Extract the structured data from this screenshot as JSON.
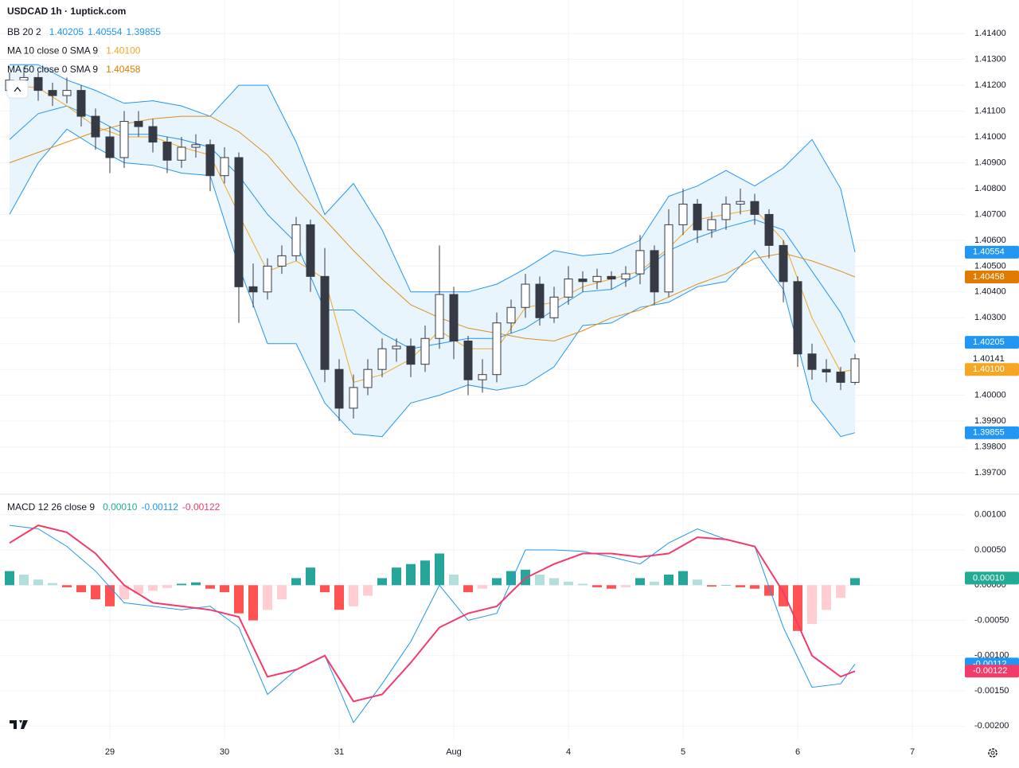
{
  "chart_data": [
    {
      "type": "candlestick",
      "title": "USDCAD 1h · 1uptick.com",
      "x": [
        -21,
        -18,
        -15,
        -12,
        -9,
        -6,
        -3,
        0,
        3,
        6,
        9,
        12,
        15,
        18,
        21,
        24,
        27,
        30,
        33,
        36,
        39,
        42,
        45,
        48,
        51,
        54,
        57,
        60,
        63,
        66,
        69,
        72,
        75,
        78,
        81,
        84,
        87,
        90,
        93,
        96,
        99,
        102,
        105,
        108,
        111,
        114,
        117,
        120,
        123,
        126,
        129,
        132,
        135,
        138,
        141,
        144,
        147,
        150,
        153,
        156
      ],
      "open": [
        1.4118,
        1.4122,
        1.4123,
        1.4118,
        1.4116,
        1.4118,
        1.4108,
        1.41,
        1.4092,
        1.4106,
        1.4104,
        1.4098,
        1.4091,
        1.4096,
        1.4097,
        1.4085,
        1.4092,
        1.4042,
        1.404,
        1.405,
        1.4054,
        1.4066,
        1.4046,
        1.401,
        1.3995,
        1.4003,
        1.401,
        1.4018,
        1.4019,
        1.4012,
        1.4022,
        1.4039,
        1.4021,
        1.4006,
        1.4008,
        1.4028,
        1.4034,
        1.4043,
        1.403,
        1.4038,
        1.4045,
        1.4044,
        1.4046,
        1.4045,
        1.4047,
        1.4056,
        1.404,
        1.4066,
        1.4074,
        1.4064,
        1.4068,
        1.4074,
        1.4075,
        1.407,
        1.4058,
        1.4044,
        1.4016,
        1.401,
        1.4009,
        1.4005
      ],
      "high": [
        1.4125,
        1.4127,
        1.4125,
        1.4121,
        1.4123,
        1.412,
        1.4111,
        1.4104,
        1.411,
        1.411,
        1.4107,
        1.41,
        1.41,
        1.4101,
        1.4099,
        1.4096,
        1.4094,
        1.4051,
        1.4053,
        1.4058,
        1.4069,
        1.4068,
        1.4057,
        1.4014,
        1.4008,
        1.4014,
        1.4022,
        1.4022,
        1.4022,
        1.4027,
        1.4058,
        1.4042,
        1.4023,
        1.4014,
        1.4032,
        1.4037,
        1.4047,
        1.4046,
        1.4042,
        1.405,
        1.4048,
        1.4049,
        1.4048,
        1.405,
        1.4062,
        1.4058,
        1.4072,
        1.408,
        1.4076,
        1.4071,
        1.4077,
        1.408,
        1.4078,
        1.4072,
        1.406,
        1.4046,
        1.402,
        1.4014,
        1.4011,
        1.4016
      ],
      "low": [
        1.4115,
        1.4118,
        1.4114,
        1.4112,
        1.4113,
        1.4104,
        1.4095,
        1.4086,
        1.4088,
        1.41,
        1.4094,
        1.4086,
        1.4088,
        1.4092,
        1.4079,
        1.4082,
        1.4028,
        1.4034,
        1.4037,
        1.4047,
        1.4052,
        1.404,
        1.4005,
        1.399,
        1.3991,
        1.4,
        1.4007,
        1.4013,
        1.4007,
        1.4009,
        1.4018,
        1.4014,
        1.4,
        1.4001,
        1.4005,
        1.4024,
        1.403,
        1.4027,
        1.4028,
        1.4035,
        1.404,
        1.4041,
        1.4041,
        1.4042,
        1.4043,
        1.4035,
        1.4038,
        1.4062,
        1.4059,
        1.4061,
        1.4064,
        1.407,
        1.4066,
        1.4053,
        1.4036,
        1.4011,
        1.4006,
        1.4005,
        1.4002,
        1.4004
      ],
      "close": [
        1.4122,
        1.4123,
        1.4118,
        1.4116,
        1.4118,
        1.4108,
        1.41,
        1.4092,
        1.4106,
        1.4104,
        1.4098,
        1.4091,
        1.4096,
        1.4097,
        1.4085,
        1.4092,
        1.4042,
        1.404,
        1.405,
        1.4054,
        1.4066,
        1.4046,
        1.401,
        1.3995,
        1.4003,
        1.401,
        1.4018,
        1.4019,
        1.4012,
        1.4022,
        1.4039,
        1.4021,
        1.4006,
        1.4008,
        1.4028,
        1.4034,
        1.4043,
        1.403,
        1.4038,
        1.4045,
        1.4044,
        1.4046,
        1.4045,
        1.4047,
        1.4056,
        1.404,
        1.4066,
        1.4074,
        1.4064,
        1.4068,
        1.4074,
        1.4075,
        1.407,
        1.4058,
        1.4044,
        1.4016,
        1.401,
        1.4009,
        1.4005,
        1.40141
      ],
      "up_color": "#ffffff",
      "down_color": "#363a45",
      "wick_color": "#363a45",
      "line_x": [
        -21,
        -15,
        -9,
        -3,
        3,
        9,
        15,
        21,
        27,
        33,
        39,
        45,
        51,
        57,
        63,
        69,
        75,
        81,
        87,
        93,
        99,
        105,
        111,
        117,
        123,
        129,
        135,
        141,
        147,
        153,
        156
      ],
      "indicators": [
        {
          "label": "BB 20 2",
          "value_labels": [
            "1.40205",
            "1.40554",
            "1.39855"
          ],
          "label_color": "#2196f3",
          "band_fill": "#e3f2fd",
          "lines": [
            {
              "color": "#2196f3",
              "values": [
                1.4099,
                1.4109,
                1.4112,
                1.4107,
                1.4101,
                1.4101,
                1.4099,
                1.4096,
                1.4085,
                1.407,
                1.4059,
                1.4033,
                1.4033,
                1.4024,
                1.4018,
                1.402,
                1.4022,
                1.4022,
                1.4026,
                1.4033,
                1.404,
                1.4041,
                1.4047,
                1.4056,
                1.4061,
                1.4065,
                1.4068,
                1.4064,
                1.4048,
                1.4032,
                1.40205
              ]
            },
            {
              "color": "#2196f3",
              "values": [
                1.4128,
                1.4128,
                1.4122,
                1.4118,
                1.4113,
                1.4114,
                1.4112,
                1.4108,
                1.412,
                1.412,
                1.4098,
                1.407,
                1.4082,
                1.4064,
                1.404,
                1.404,
                1.404,
                1.4043,
                1.4049,
                1.4056,
                1.4054,
                1.4055,
                1.406,
                1.4077,
                1.4081,
                1.4087,
                1.4081,
                1.4088,
                1.4099,
                1.408,
                1.40554
              ]
            },
            {
              "color": "#2196f3",
              "values": [
                1.407,
                1.409,
                1.4103,
                1.4096,
                1.409,
                1.4089,
                1.4086,
                1.4085,
                1.405,
                1.402,
                1.402,
                1.3997,
                1.3985,
                1.3984,
                1.3997,
                1.4,
                1.4004,
                1.4002,
                1.4004,
                1.4011,
                1.4027,
                1.4028,
                1.4034,
                1.4036,
                1.4042,
                1.4044,
                1.4056,
                1.4041,
                1.3998,
                1.3984,
                1.39855
              ]
            }
          ]
        },
        {
          "label": "MA 10 close 0 SMA 9",
          "value_labels": [
            "1.40100"
          ],
          "label_color": "#f5a623",
          "lines": [
            {
              "color": "#f5a623",
              "values": [
                1.412,
                1.4119,
                1.4112,
                1.4104,
                1.41,
                1.41,
                1.4096,
                1.4093,
                1.407,
                1.4048,
                1.4052,
                1.4045,
                1.4005,
                1.4008,
                1.4014,
                1.4025,
                1.4018,
                1.4018,
                1.4034,
                1.4036,
                1.4042,
                1.4045,
                1.4048,
                1.4057,
                1.4068,
                1.407,
                1.4072,
                1.406,
                1.403,
                1.4009,
                1.401
              ]
            }
          ]
        },
        {
          "label": "MA 50 close 0 SMA 9",
          "value_labels": [
            "1.40458"
          ],
          "label_color": "#e07b00",
          "lines": [
            {
              "color": "#e08e1a",
              "values": [
                1.409,
                1.4094,
                1.4098,
                1.4102,
                1.4105,
                1.4107,
                1.4108,
                1.4108,
                1.4102,
                1.4093,
                1.408,
                1.4068,
                1.4056,
                1.4045,
                1.4035,
                1.403,
                1.4026,
                1.4024,
                1.4022,
                1.4021,
                1.4025,
                1.403,
                1.4033,
                1.4038,
                1.4043,
                1.4047,
                1.4053,
                1.4055,
                1.4052,
                1.4048,
                1.40458
              ]
            }
          ]
        }
      ],
      "xlim": [
        -23,
        179
      ],
      "xticks": [
        {
          "value": 0,
          "label": "29"
        },
        {
          "value": 24,
          "label": "30"
        },
        {
          "value": 48,
          "label": "31"
        },
        {
          "value": 72,
          "label": "Aug"
        },
        {
          "value": 96,
          "label": "4"
        },
        {
          "value": 120,
          "label": "5"
        },
        {
          "value": 144,
          "label": "6"
        },
        {
          "value": 168,
          "label": "7"
        }
      ],
      "ylim": [
        1.3962,
        1.4153
      ],
      "yticks": [
        {
          "value": 1.414,
          "label": "1.41400"
        },
        {
          "value": 1.413,
          "label": "1.41300"
        },
        {
          "value": 1.412,
          "label": "1.41200"
        },
        {
          "value": 1.411,
          "label": "1.41100"
        },
        {
          "value": 1.41,
          "label": "1.41000"
        },
        {
          "value": 1.409,
          "label": "1.40900"
        },
        {
          "value": 1.408,
          "label": "1.40800"
        },
        {
          "value": 1.407,
          "label": "1.40700"
        },
        {
          "value": 1.406,
          "label": "1.40600"
        },
        {
          "value": 1.405,
          "label": "1.40500"
        },
        {
          "value": 1.404,
          "label": "1.40400"
        },
        {
          "value": 1.403,
          "label": "1.40300"
        },
        {
          "value": 1.402,
          "label": "1.40200"
        },
        {
          "value": 1.401,
          "label": "1.40100"
        },
        {
          "value": 1.4,
          "label": "1.40000"
        },
        {
          "value": 1.399,
          "label": "1.39900"
        },
        {
          "value": 1.398,
          "label": "1.39800"
        },
        {
          "value": 1.397,
          "label": "1.39700"
        }
      ],
      "price_labels": [
        {
          "value": 1.40554,
          "label": "1.40554",
          "color": "#2196f3",
          "filled": true
        },
        {
          "value": 1.40458,
          "label": "1.40458",
          "color": "#e07b00",
          "filled": true
        },
        {
          "value": 1.40205,
          "label": "1.40205",
          "color": "#2196f3",
          "filled": true
        },
        {
          "value": 1.40141,
          "label": "1.40141",
          "color": "#131722",
          "filled": false
        },
        {
          "value": 1.401,
          "label": "1.40100",
          "color": "#f5a623",
          "filled": true
        },
        {
          "value": 1.39855,
          "label": "1.39855",
          "color": "#2196f3",
          "filled": true
        }
      ],
      "grid": true
    },
    {
      "type": "macd",
      "label": "MACD 12 26 close 9",
      "value_labels": [
        "0.00010",
        "-0.00112",
        "-0.00122"
      ],
      "label_colors": [
        "#22ab94",
        "#2196f3",
        "#f23b6b"
      ],
      "histogram": {
        "values": [
          0.0002,
          0.00015,
          8e-05,
          3e-05,
          -3e-05,
          -0.0001,
          -0.0002,
          -0.0003,
          -0.0002,
          -0.00012,
          -8e-05,
          -4e-05,
          2e-05,
          4e-05,
          -5e-05,
          -0.0001,
          -0.0004,
          -0.0005,
          -0.00035,
          -0.0002,
          0.0001,
          0.00025,
          -0.0001,
          -0.00035,
          -0.0003,
          -0.00015,
          0.0001,
          0.00025,
          0.0003,
          0.00035,
          0.00045,
          0.00015,
          -0.0001,
          -5e-05,
          0.0001,
          0.0002,
          0.00022,
          0.00015,
          0.0001,
          5e-05,
          2e-05,
          -3e-05,
          -5e-05,
          -3e-05,
          0.0001,
          5e-05,
          0.00015,
          0.0002,
          8e-05,
          -2e-05,
          0,
          -3e-05,
          -5e-05,
          -0.00015,
          -0.0003,
          -0.00065,
          -0.00055,
          -0.00035,
          -0.00018,
          0.0001
        ],
        "colors": [
          "#26a69a",
          "#b2dfdb",
          "#ff5252",
          "#ffcdd2"
        ]
      },
      "lines": [
        {
          "color": "#2196f3",
          "values": [
            0.00085,
            0.0008,
            0.00055,
            0.0002,
            -0.00025,
            -0.0003,
            -0.00035,
            -0.0003,
            -0.0006,
            -0.00155,
            -0.0012,
            -0.001,
            -0.00195,
            -0.0014,
            -0.0008,
            0,
            -0.0005,
            -0.0004,
            0.0005,
            0.0005,
            0.00048,
            0.0004,
            0.0003,
            0.0006,
            0.0008,
            0.00065,
            0.00055,
            -0.0006,
            -0.00145,
            -0.0014,
            -0.00112
          ]
        },
        {
          "color": "#f23b6b",
          "values": [
            0.0006,
            0.00085,
            0.00075,
            0.00045,
            0,
            -0.00025,
            -0.0003,
            -0.00035,
            -0.00045,
            -0.0013,
            -0.0012,
            -0.001,
            -0.00165,
            -0.00155,
            -0.0011,
            -0.0006,
            -0.0004,
            -0.0003,
            0.0001,
            0.0003,
            0.00045,
            0.00045,
            0.0004,
            0.00045,
            0.00068,
            0.00065,
            0.00055,
            -0.0001,
            -0.001,
            -0.0013,
            -0.00122
          ]
        }
      ],
      "ylim": [
        -0.0022,
        0.00128
      ],
      "yticks": [
        {
          "value": 0.001,
          "label": "0.00100"
        },
        {
          "value": 0.0005,
          "label": "0.00050"
        },
        {
          "value": 0,
          "label": "0.00000"
        },
        {
          "value": -0.0005,
          "label": "-0.00050"
        },
        {
          "value": -0.001,
          "label": "-0.00100"
        },
        {
          "value": -0.0015,
          "label": "-0.00150"
        },
        {
          "value": -0.002,
          "label": "-0.00200"
        }
      ],
      "price_labels": [
        {
          "value": 0.0001,
          "label": "0.00010",
          "color": "#22ab94",
          "filled": true
        },
        {
          "value": -0.00112,
          "label": "-0.00112",
          "color": "#2196f3",
          "filled": true
        },
        {
          "value": -0.00122,
          "label": "-0.00122",
          "color": "#f23b6b",
          "filled": true
        }
      ]
    }
  ]
}
